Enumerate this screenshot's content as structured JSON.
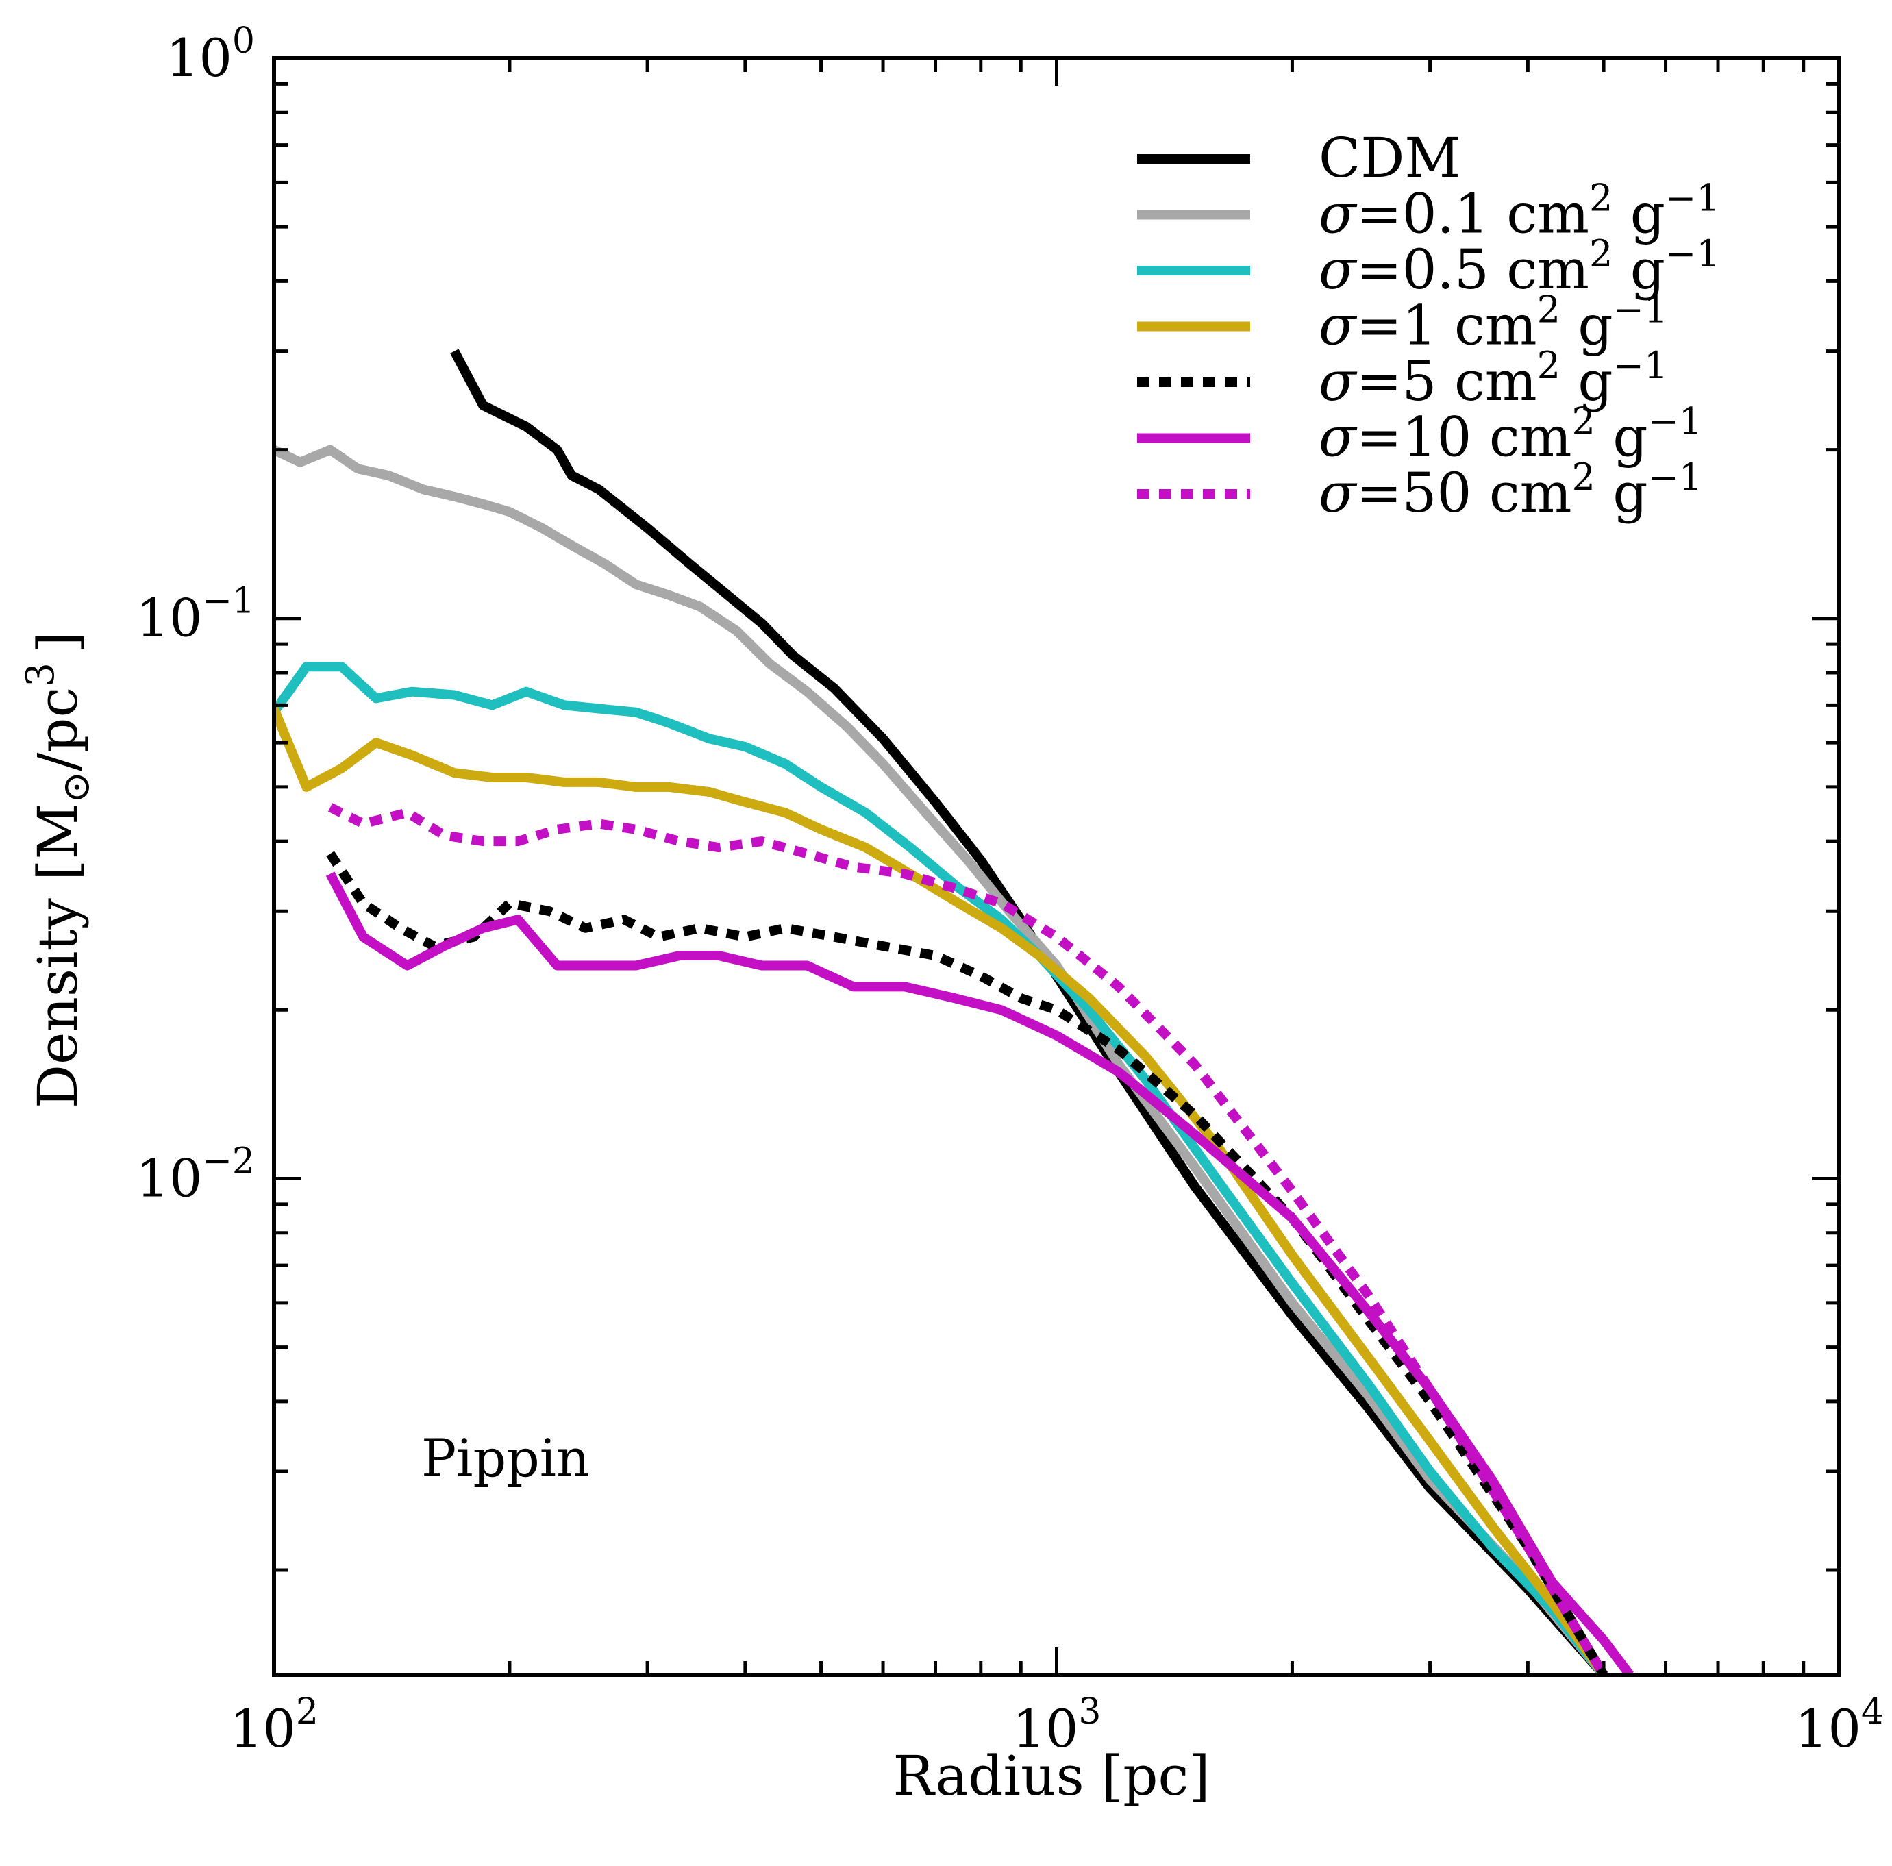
{
  "chart_data": {
    "type": "line",
    "title": "",
    "xlabel": "Radius [pc]",
    "ylabel_parts": {
      "prefix": "Density [M",
      "sub": "⊙",
      "middle": "/pc",
      "sup": "3",
      "suffix": "]"
    },
    "x_scale": "log",
    "y_scale": "log",
    "xlim": [
      100,
      10000
    ],
    "ylim": [
      0.0013,
      1
    ],
    "x_ticks": [
      {
        "base": "10",
        "exp": "2",
        "value": 100
      },
      {
        "base": "10",
        "exp": "3",
        "value": 1000
      },
      {
        "base": "10",
        "exp": "4",
        "value": 10000
      }
    ],
    "y_ticks": [
      {
        "base": "10",
        "exp": "0",
        "value": 1
      },
      {
        "base": "10",
        "exp": "−1",
        "value": 0.1
      },
      {
        "base": "10",
        "exp": "−2",
        "value": 0.01
      }
    ],
    "annotation": "Pippin",
    "legend_position": "top-right",
    "series": [
      {
        "name": "CDM",
        "label": {
          "sigma": "",
          "value": "CDM",
          "unit": "",
          "sup1": "",
          "unit2": "",
          "sup2": ""
        },
        "color": "#000000",
        "dash": "solid",
        "x": [
          170,
          185,
          210,
          230,
          240,
          260,
          300,
          340,
          380,
          420,
          460,
          520,
          600,
          700,
          800,
          900,
          1000,
          1200,
          1500,
          2000,
          2500,
          3000,
          4000,
          5000
        ],
        "y": [
          0.3,
          0.24,
          0.22,
          0.2,
          0.18,
          0.17,
          0.145,
          0.125,
          0.11,
          0.098,
          0.086,
          0.075,
          0.061,
          0.047,
          0.037,
          0.029,
          0.023,
          0.0155,
          0.0097,
          0.0057,
          0.0039,
          0.0028,
          0.00185,
          0.0013
        ]
      },
      {
        "name": "sigma=0.1",
        "label": {
          "sigma": "σ",
          "value": "=0.1 cm",
          "unit": "",
          "sup1": "2",
          "unit2": " g",
          "sup2": "−1"
        },
        "color": "#a8a8a8",
        "dash": "solid",
        "x": [
          100,
          108,
          118,
          128,
          140,
          155,
          170,
          185,
          200,
          220,
          240,
          265,
          290,
          320,
          350,
          390,
          430,
          480,
          540,
          600,
          680,
          770,
          870,
          1000,
          1200,
          1500,
          2000,
          2500,
          3000,
          4000,
          5000
        ],
        "y": [
          0.2,
          0.19,
          0.2,
          0.185,
          0.18,
          0.17,
          0.165,
          0.16,
          0.155,
          0.145,
          0.135,
          0.125,
          0.115,
          0.11,
          0.105,
          0.095,
          0.083,
          0.074,
          0.064,
          0.055,
          0.045,
          0.037,
          0.03,
          0.024,
          0.016,
          0.0105,
          0.006,
          0.0041,
          0.0029,
          0.0019,
          0.0013
        ]
      },
      {
        "name": "sigma=0.5",
        "label": {
          "sigma": "σ",
          "value": "=0.5 cm",
          "unit": "",
          "sup1": "2",
          "unit2": " g",
          "sup2": "−1"
        },
        "color": "#1fbfbf",
        "dash": "solid",
        "x": [
          100,
          110,
          122,
          135,
          150,
          170,
          190,
          210,
          235,
          260,
          290,
          320,
          360,
          400,
          450,
          500,
          570,
          650,
          750,
          850,
          950,
          1100,
          1300,
          1600,
          2000,
          2500,
          3000,
          3600,
          4300,
          5000
        ],
        "y": [
          0.068,
          0.082,
          0.082,
          0.072,
          0.074,
          0.073,
          0.07,
          0.074,
          0.07,
          0.069,
          0.068,
          0.065,
          0.061,
          0.059,
          0.055,
          0.05,
          0.045,
          0.039,
          0.033,
          0.029,
          0.025,
          0.02,
          0.015,
          0.01,
          0.0065,
          0.0043,
          0.003,
          0.0022,
          0.0017,
          0.0013
        ]
      },
      {
        "name": "sigma=1",
        "label": {
          "sigma": "σ",
          "value": "=1 cm",
          "unit": "",
          "sup1": "2",
          "unit2": " g",
          "sup2": "−1"
        },
        "color": "#ccaa10",
        "dash": "solid",
        "x": [
          100,
          110,
          122,
          135,
          150,
          170,
          190,
          210,
          235,
          260,
          290,
          320,
          360,
          400,
          450,
          500,
          570,
          650,
          750,
          850,
          950,
          1100,
          1300,
          1600,
          2000,
          2500,
          3000,
          3600,
          4300,
          5000
        ],
        "y": [
          0.069,
          0.05,
          0.054,
          0.06,
          0.057,
          0.053,
          0.052,
          0.052,
          0.051,
          0.051,
          0.05,
          0.05,
          0.049,
          0.047,
          0.045,
          0.042,
          0.039,
          0.035,
          0.031,
          0.028,
          0.025,
          0.021,
          0.0165,
          0.0115,
          0.0073,
          0.0048,
          0.0034,
          0.0024,
          0.00175,
          0.0013
        ]
      },
      {
        "name": "sigma=5",
        "label": {
          "sigma": "σ",
          "value": "=5 cm",
          "unit": "",
          "sup1": "2",
          "unit2": " g",
          "sup2": "−1"
        },
        "color": "#000000",
        "dash": "dotted",
        "x": [
          118,
          130,
          145,
          160,
          180,
          200,
          225,
          250,
          280,
          310,
          350,
          400,
          450,
          520,
          600,
          700,
          800,
          900,
          1000,
          1200,
          1500,
          2000,
          2500,
          3000,
          4000,
          5000
        ],
        "y": [
          0.038,
          0.031,
          0.028,
          0.026,
          0.027,
          0.031,
          0.03,
          0.028,
          0.029,
          0.027,
          0.028,
          0.027,
          0.028,
          0.027,
          0.026,
          0.025,
          0.023,
          0.021,
          0.02,
          0.017,
          0.013,
          0.0085,
          0.0056,
          0.004,
          0.0022,
          0.0013
        ]
      },
      {
        "name": "sigma=10",
        "label": {
          "sigma": "σ",
          "value": "=10 cm",
          "unit": "",
          "sup1": "2",
          "unit2": " g",
          "sup2": "−1"
        },
        "color": "#c410c4",
        "dash": "solid",
        "x": [
          118,
          130,
          148,
          165,
          185,
          205,
          230,
          255,
          290,
          330,
          370,
          420,
          480,
          550,
          640,
          740,
          850,
          1000,
          1200,
          1500,
          2000,
          2500,
          3000,
          3600,
          4300,
          5000,
          5400
        ],
        "y": [
          0.035,
          0.027,
          0.024,
          0.026,
          0.028,
          0.029,
          0.024,
          0.024,
          0.024,
          0.025,
          0.025,
          0.024,
          0.024,
          0.022,
          0.022,
          0.021,
          0.02,
          0.018,
          0.0155,
          0.012,
          0.0085,
          0.0058,
          0.0042,
          0.0029,
          0.0019,
          0.0015,
          0.0013
        ]
      },
      {
        "name": "sigma=50",
        "label": {
          "sigma": "σ",
          "value": "=50 cm",
          "unit": "",
          "sup1": "2",
          "unit2": " g",
          "sup2": "−1"
        },
        "color": "#c410c4",
        "dash": "dotted",
        "x": [
          118,
          130,
          148,
          165,
          185,
          205,
          230,
          260,
          290,
          330,
          370,
          420,
          480,
          550,
          640,
          740,
          850,
          1000,
          1200,
          1500,
          2000,
          2500,
          3000,
          4000,
          5000
        ],
        "y": [
          0.046,
          0.043,
          0.045,
          0.041,
          0.04,
          0.04,
          0.042,
          0.043,
          0.042,
          0.04,
          0.039,
          0.04,
          0.038,
          0.036,
          0.035,
          0.033,
          0.031,
          0.027,
          0.022,
          0.016,
          0.0095,
          0.0062,
          0.0042,
          0.0022,
          0.0013
        ]
      }
    ]
  }
}
